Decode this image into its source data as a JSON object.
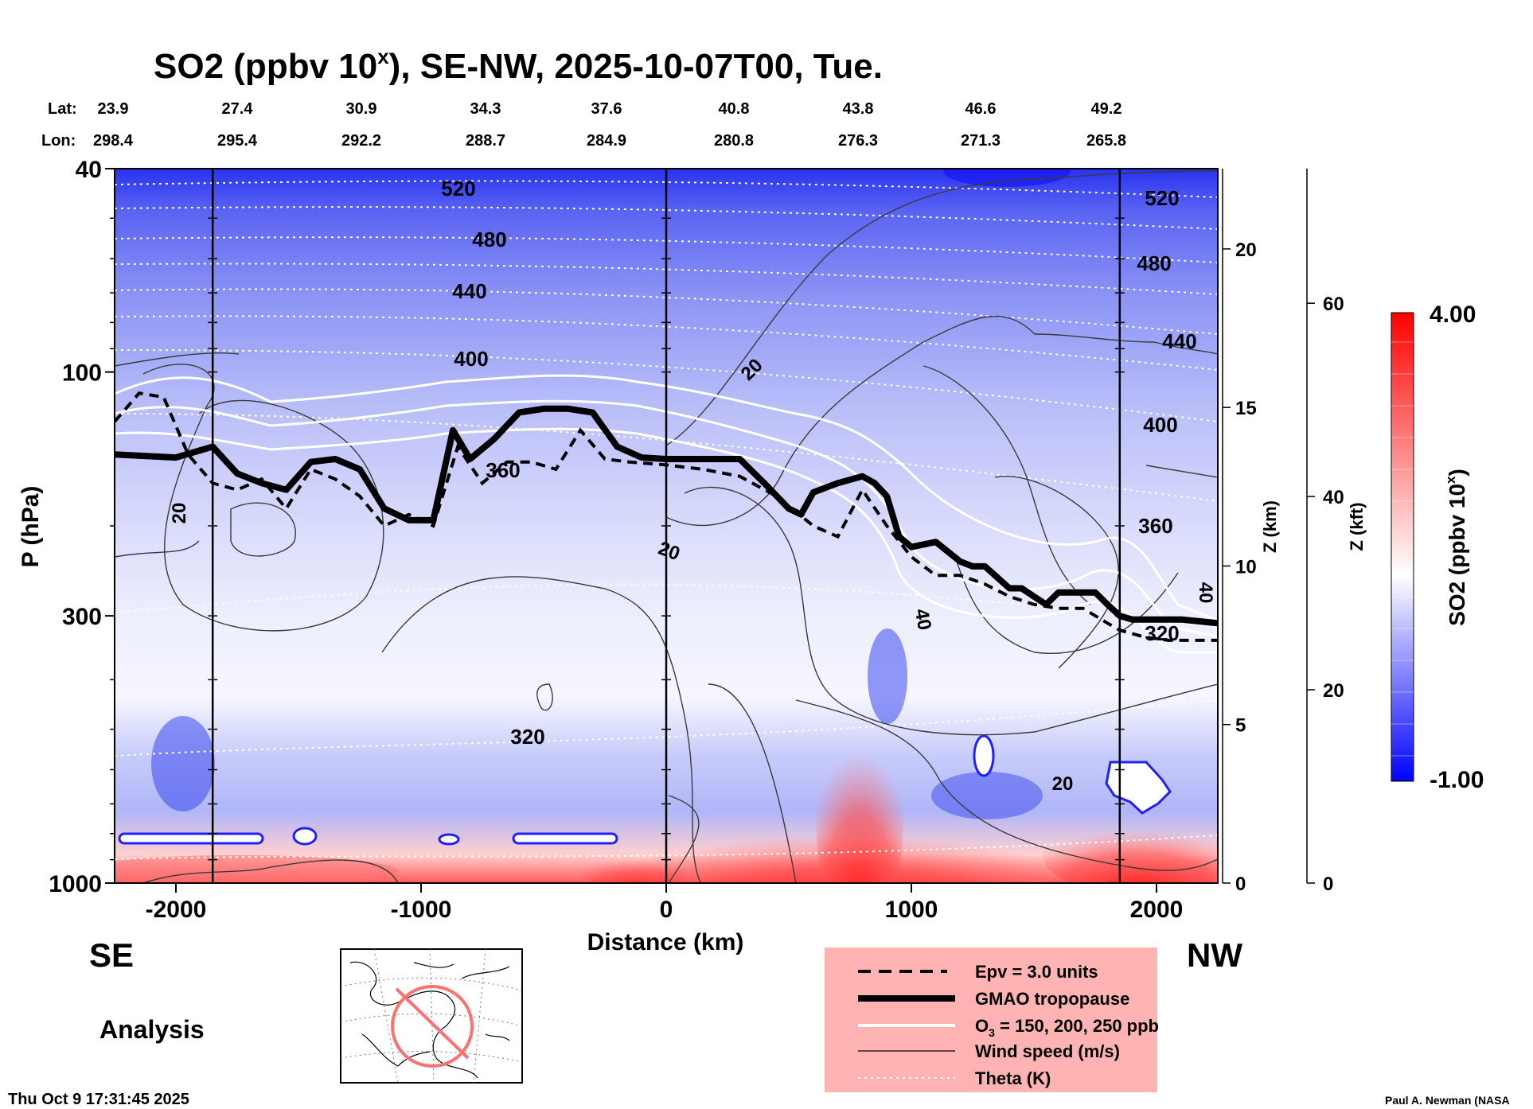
{
  "chart_data": {
    "type": "heatmap",
    "title": "SO2 (ppbv 10",
    "title_sup": "x",
    "title_rest": "), SE-NW, 2025-10-07T00, Tue.",
    "xlabel": "Distance (km)",
    "ylabel": "P (hPa)",
    "y2label": "Z (km)",
    "y3label": "Z (kft)",
    "colorbar_label": "SO2 (ppbv 10",
    "colorbar_sup": "x",
    "colorbar_close": ")",
    "colorbar_range": [
      -1.0,
      4.0
    ],
    "colorbar_max_label": "4.00",
    "colorbar_min_label": "-1.00",
    "xlim": [
      -2250,
      2250
    ],
    "ylim": [
      1000,
      40
    ],
    "y_scale": "log",
    "x_ticks": [
      -2000,
      -1000,
      0,
      1000,
      2000
    ],
    "x_tick_labels": [
      "-2000",
      "-1000",
      "0",
      "1000",
      "2000"
    ],
    "y_ticks": [
      40,
      100,
      300,
      1000
    ],
    "y_tick_labels": [
      "40",
      "100",
      "300",
      "1000"
    ],
    "z_km_ticks": [
      0,
      5,
      10,
      15,
      20
    ],
    "z_km_labels": [
      "0",
      "5",
      "10",
      "15",
      "20"
    ],
    "z_kft_ticks": [
      0,
      20,
      40,
      60
    ],
    "z_kft_labels": [
      "0",
      "20",
      "40",
      "60"
    ],
    "lat_label": "Lat:",
    "lon_label": "Lon:",
    "latitudes": [
      "23.9",
      "27.4",
      "30.9",
      "34.3",
      "37.6",
      "40.8",
      "43.8",
      "46.6",
      "49.2"
    ],
    "longitudes": [
      "298.4",
      "295.4",
      "292.2",
      "288.7",
      "284.9",
      "280.8",
      "276.3",
      "271.3",
      "265.8"
    ],
    "vertical_lines_km": [
      -1850,
      0,
      1850
    ],
    "theta_labels": [
      "520",
      "480",
      "440",
      "400",
      "360",
      "320",
      "520",
      "480",
      "440",
      "400",
      "360",
      "320"
    ],
    "wind_labels": [
      "20",
      "20",
      "20",
      "40",
      "40",
      "20"
    ],
    "tropopause_km": [
      -2250,
      -2000,
      -1850,
      -1750,
      -1650,
      -1550,
      -1450,
      -1350,
      -1250,
      -1150,
      -1050,
      -950,
      -870,
      -800,
      -700,
      -600,
      -500,
      -400,
      -300,
      -200,
      -100,
      0,
      100,
      200,
      300,
      400,
      500,
      550,
      600,
      700,
      800,
      850,
      900,
      950,
      1000,
      1100,
      1200,
      1250,
      1300,
      1400,
      1450,
      1500,
      1550,
      1600,
      1700,
      1750,
      1800,
      1850,
      1900,
      2000,
      2100,
      2250
    ],
    "tropopause_hpa": [
      145,
      147,
      140,
      158,
      165,
      170,
      150,
      148,
      155,
      185,
      195,
      195,
      130,
      148,
      135,
      120,
      118,
      118,
      120,
      140,
      147,
      148,
      148,
      148,
      148,
      165,
      185,
      190,
      172,
      165,
      160,
      165,
      175,
      210,
      220,
      215,
      235,
      240,
      240,
      265,
      265,
      275,
      285,
      270,
      270,
      270,
      285,
      300,
      305,
      305,
      305,
      310
    ],
    "epv_km": [
      -2250,
      -2150,
      -2050,
      -1950,
      -1850,
      -1750,
      -1650,
      -1550,
      -1450,
      -1350,
      -1250,
      -1150,
      -1050,
      -950,
      -850,
      -750,
      -650,
      -550,
      -450,
      -350,
      -250,
      -150,
      0,
      150,
      300,
      450,
      600,
      700,
      800,
      900,
      1000,
      1100,
      1200,
      1300,
      1400,
      1500,
      1600,
      1700,
      1800,
      1850,
      1950,
      2050,
      2250
    ],
    "epv_hpa": [
      125,
      110,
      112,
      145,
      165,
      170,
      162,
      185,
      155,
      162,
      175,
      200,
      190,
      200,
      140,
      165,
      150,
      150,
      155,
      130,
      148,
      150,
      152,
      155,
      160,
      175,
      200,
      210,
      170,
      200,
      230,
      250,
      250,
      260,
      275,
      285,
      290,
      290,
      310,
      320,
      330,
      335,
      335
    ],
    "legend": [
      {
        "label": "Epv = 3.0 units",
        "style": "dashed"
      },
      {
        "label": "GMAO tropopause",
        "style": "thick"
      },
      {
        "label": "O",
        "sub": "3",
        "rest": " = 150, 200, 250 ppb",
        "style": "white"
      },
      {
        "label": "Wind speed (m/s)",
        "style": "thin"
      },
      {
        "label": "Theta (K)",
        "style": "dotted"
      }
    ],
    "colors": {
      "cold": "#1a1aff",
      "neutral": "#ffffff",
      "hot": "#ff1a1a",
      "legend_bg": "#ffb3b3"
    }
  },
  "labels": {
    "left_dir": "SE",
    "right_dir": "NW",
    "analysis": "Analysis",
    "timestamp": "Thu Oct  9 17:31:45 2025",
    "credit": "Paul A. Newman (NASA"
  }
}
